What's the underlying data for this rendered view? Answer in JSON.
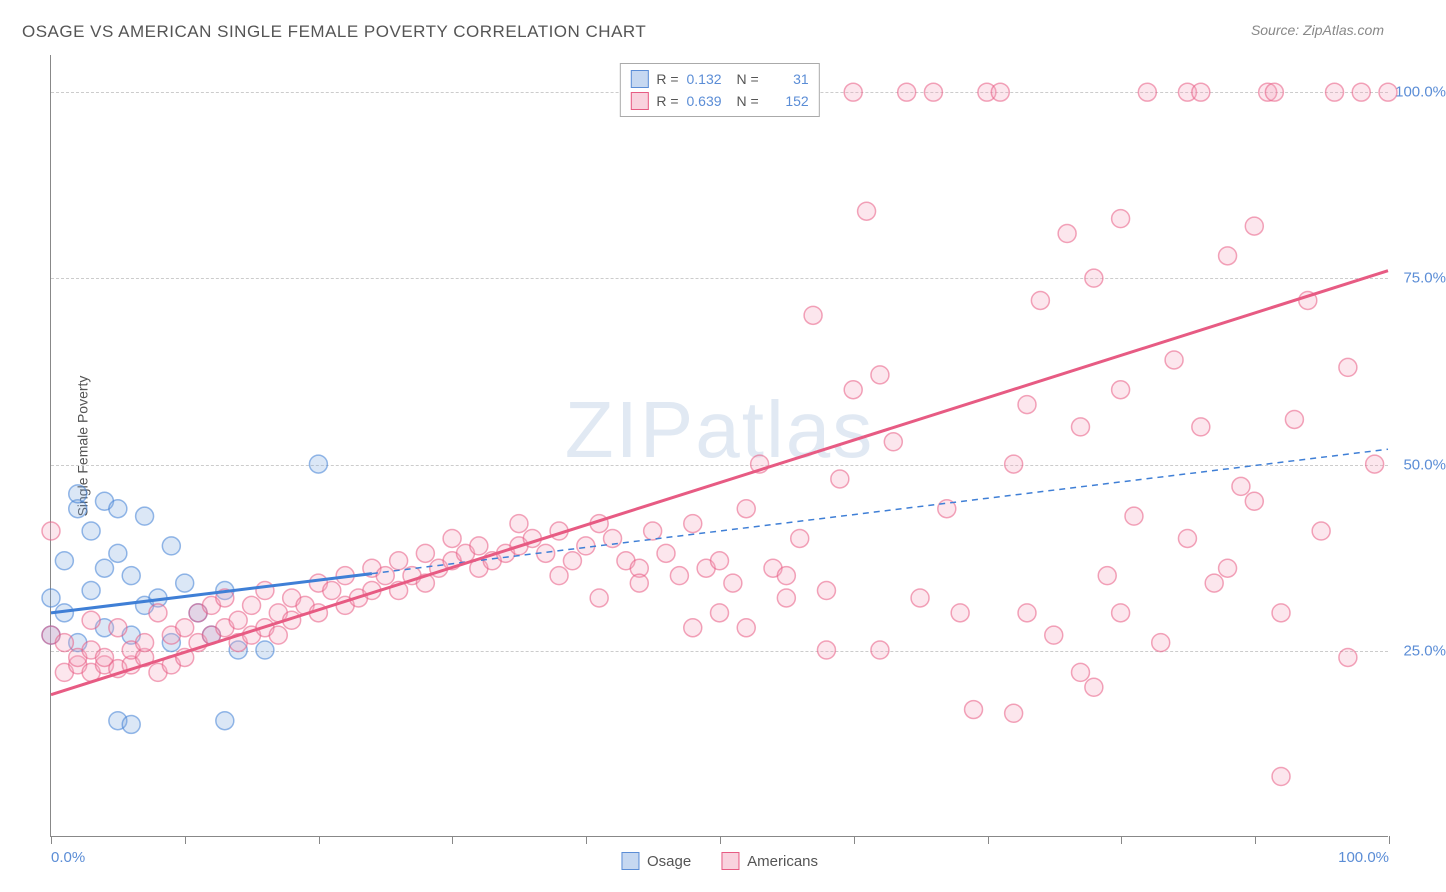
{
  "title": "OSAGE VS AMERICAN SINGLE FEMALE POVERTY CORRELATION CHART",
  "source": "Source: ZipAtlas.com",
  "y_axis_label": "Single Female Poverty",
  "watermark": "ZIPatlas",
  "chart": {
    "type": "scatter",
    "background_color": "#ffffff",
    "grid_color": "#cccccc",
    "axis_color": "#888888",
    "xlim": [
      0,
      100
    ],
    "ylim": [
      0,
      105
    ],
    "y_ticks": [
      {
        "val": 25,
        "label": "25.0%"
      },
      {
        "val": 50,
        "label": "50.0%"
      },
      {
        "val": 75,
        "label": "75.0%"
      },
      {
        "val": 100,
        "label": "100.0%"
      }
    ],
    "x_tick_positions": [
      0,
      10,
      20,
      30,
      40,
      50,
      60,
      70,
      80,
      90,
      100
    ],
    "x_tick_labels": [
      {
        "val": 0,
        "label": "0.0%",
        "align": "left"
      },
      {
        "val": 100,
        "label": "100.0%",
        "align": "right"
      }
    ],
    "title_fontsize": 17,
    "label_fontsize": 14,
    "tick_fontsize": 15,
    "tick_label_color": "#5b8dd6",
    "marker_radius": 9,
    "marker_stroke_width": 1.5,
    "marker_fill_opacity": 0.28,
    "trend_line_width": 3,
    "series": [
      {
        "name": "Osage",
        "stroke": "#3f7fd6",
        "fill": "#7fa8e0",
        "R": "0.132",
        "N": "31",
        "trend": {
          "x1": 0,
          "y1": 30,
          "x2": 100,
          "y2": 52,
          "solid_until_x": 24,
          "dash": "6,5"
        },
        "points": [
          [
            0,
            27
          ],
          [
            0,
            32
          ],
          [
            1,
            30
          ],
          [
            1,
            37
          ],
          [
            2,
            44
          ],
          [
            2,
            46
          ],
          [
            2,
            26
          ],
          [
            3,
            33
          ],
          [
            3,
            41
          ],
          [
            4,
            45
          ],
          [
            4,
            36
          ],
          [
            4,
            28
          ],
          [
            5,
            38
          ],
          [
            5,
            44
          ],
          [
            6,
            35
          ],
          [
            6,
            27
          ],
          [
            7,
            31
          ],
          [
            7,
            43
          ],
          [
            8,
            32
          ],
          [
            9,
            39
          ],
          [
            9,
            26
          ],
          [
            10,
            34
          ],
          [
            11,
            30
          ],
          [
            12,
            27
          ],
          [
            13,
            33
          ],
          [
            14,
            25
          ],
          [
            5,
            15.5
          ],
          [
            6,
            15
          ],
          [
            13,
            15.5
          ],
          [
            16,
            25
          ],
          [
            20,
            50
          ]
        ]
      },
      {
        "name": "Americans",
        "stroke": "#e75b83",
        "fill": "#f4a6bd",
        "R": "0.639",
        "N": "152",
        "trend": {
          "x1": 0,
          "y1": 19,
          "x2": 100,
          "y2": 76,
          "solid_until_x": 100
        },
        "points": [
          [
            0,
            27
          ],
          [
            0,
            41
          ],
          [
            1,
            26
          ],
          [
            1,
            22
          ],
          [
            2,
            23
          ],
          [
            2,
            24
          ],
          [
            3,
            22
          ],
          [
            3,
            25
          ],
          [
            3,
            29
          ],
          [
            4,
            23
          ],
          [
            4,
            24
          ],
          [
            5,
            22.5
          ],
          [
            5,
            28
          ],
          [
            6,
            23
          ],
          [
            6,
            25
          ],
          [
            7,
            24
          ],
          [
            7,
            26
          ],
          [
            8,
            22
          ],
          [
            8,
            30
          ],
          [
            9,
            23
          ],
          [
            9,
            27
          ],
          [
            10,
            24
          ],
          [
            10,
            28
          ],
          [
            11,
            26
          ],
          [
            11,
            30
          ],
          [
            12,
            27
          ],
          [
            12,
            31
          ],
          [
            13,
            28
          ],
          [
            13,
            32
          ],
          [
            14,
            26
          ],
          [
            14,
            29
          ],
          [
            15,
            27
          ],
          [
            15,
            31
          ],
          [
            16,
            28
          ],
          [
            16,
            33
          ],
          [
            17,
            30
          ],
          [
            17,
            27
          ],
          [
            18,
            29
          ],
          [
            18,
            32
          ],
          [
            19,
            31
          ],
          [
            20,
            30
          ],
          [
            20,
            34
          ],
          [
            21,
            33
          ],
          [
            22,
            31
          ],
          [
            22,
            35
          ],
          [
            23,
            32
          ],
          [
            24,
            33
          ],
          [
            24,
            36
          ],
          [
            25,
            35
          ],
          [
            26,
            33
          ],
          [
            26,
            37
          ],
          [
            27,
            35
          ],
          [
            28,
            34
          ],
          [
            28,
            38
          ],
          [
            29,
            36
          ],
          [
            30,
            37
          ],
          [
            30,
            40
          ],
          [
            31,
            38
          ],
          [
            32,
            36
          ],
          [
            32,
            39
          ],
          [
            33,
            37
          ],
          [
            34,
            38
          ],
          [
            35,
            39
          ],
          [
            35,
            42
          ],
          [
            36,
            40
          ],
          [
            37,
            38
          ],
          [
            38,
            41
          ],
          [
            39,
            37
          ],
          [
            40,
            39
          ],
          [
            41,
            42
          ],
          [
            42,
            40
          ],
          [
            43,
            37
          ],
          [
            44,
            36
          ],
          [
            45,
            41
          ],
          [
            46,
            38
          ],
          [
            47,
            35
          ],
          [
            48,
            42
          ],
          [
            49,
            36
          ],
          [
            50,
            37
          ],
          [
            51,
            34
          ],
          [
            52,
            44
          ],
          [
            53,
            50
          ],
          [
            54,
            36
          ],
          [
            55,
            35
          ],
          [
            56,
            40
          ],
          [
            57,
            70
          ],
          [
            58,
            25
          ],
          [
            59,
            48
          ],
          [
            60,
            100
          ],
          [
            60,
            60
          ],
          [
            61,
            84
          ],
          [
            62,
            62
          ],
          [
            62,
            25
          ],
          [
            63,
            53
          ],
          [
            64,
            100
          ],
          [
            65,
            32
          ],
          [
            66,
            100
          ],
          [
            67,
            44
          ],
          [
            68,
            30
          ],
          [
            69,
            17
          ],
          [
            70,
            100
          ],
          [
            71,
            100
          ],
          [
            72,
            50
          ],
          [
            72,
            16.5
          ],
          [
            73,
            58
          ],
          [
            74,
            72
          ],
          [
            75,
            27
          ],
          [
            76,
            81
          ],
          [
            77,
            55
          ],
          [
            78,
            75
          ],
          [
            78,
            20
          ],
          [
            79,
            35
          ],
          [
            80,
            83
          ],
          [
            80,
            60
          ],
          [
            81,
            43
          ],
          [
            82,
            100
          ],
          [
            83,
            26
          ],
          [
            84,
            64
          ],
          [
            85,
            100
          ],
          [
            86,
            55
          ],
          [
            86,
            100
          ],
          [
            87,
            34
          ],
          [
            88,
            78
          ],
          [
            89,
            47
          ],
          [
            90,
            82
          ],
          [
            91,
            100
          ],
          [
            91.5,
            100
          ],
          [
            92,
            30
          ],
          [
            92,
            8
          ],
          [
            93,
            56
          ],
          [
            94,
            72
          ],
          [
            95,
            41
          ],
          [
            96,
            100
          ],
          [
            97,
            63
          ],
          [
            97,
            24
          ],
          [
            98,
            100
          ],
          [
            99,
            50
          ],
          [
            100,
            100
          ],
          [
            77,
            22
          ],
          [
            73,
            30
          ],
          [
            80,
            30
          ],
          [
            85,
            40
          ],
          [
            90,
            45
          ],
          [
            88,
            36
          ],
          [
            48,
            28
          ],
          [
            52,
            28
          ],
          [
            55,
            32
          ],
          [
            58,
            33
          ],
          [
            41,
            32
          ],
          [
            38,
            35
          ],
          [
            44,
            34
          ],
          [
            50,
            30
          ]
        ]
      }
    ]
  },
  "legend_top": {
    "rows": [
      {
        "swatch_fill": "#c6d8f1",
        "swatch_stroke": "#5b8dd6",
        "r_label": "R =",
        "r_val": "0.132",
        "n_label": "N =",
        "n_val": "31"
      },
      {
        "swatch_fill": "#f9d2de",
        "swatch_stroke": "#e75b83",
        "r_label": "R =",
        "r_val": "0.639",
        "n_label": "N =",
        "n_val": "152"
      }
    ]
  },
  "legend_bottom": {
    "items": [
      {
        "swatch_fill": "#c6d8f1",
        "swatch_stroke": "#5b8dd6",
        "label": "Osage"
      },
      {
        "swatch_fill": "#f9d2de",
        "swatch_stroke": "#e75b83",
        "label": "Americans"
      }
    ]
  }
}
